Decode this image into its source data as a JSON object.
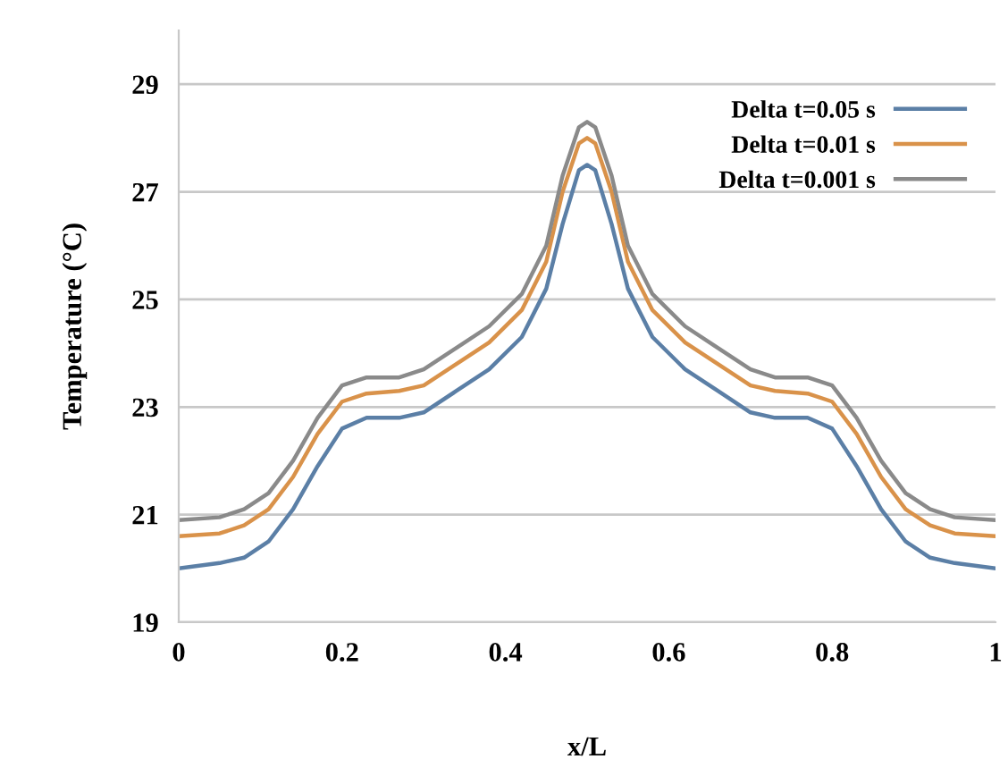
{
  "chart_data": {
    "type": "line",
    "xlabel": "x/L",
    "ylabel": "Temperature (°C)",
    "x": [
      0,
      0.05,
      0.08,
      0.11,
      0.14,
      0.17,
      0.2,
      0.23,
      0.27,
      0.3,
      0.34,
      0.38,
      0.42,
      0.45,
      0.47,
      0.49,
      0.5,
      0.51,
      0.53,
      0.55,
      0.58,
      0.62,
      0.66,
      0.7,
      0.73,
      0.77,
      0.8,
      0.83,
      0.86,
      0.89,
      0.92,
      0.95,
      1
    ],
    "series": [
      {
        "name": "Delta t=0.05 s",
        "color": "#5b7fa6",
        "values": [
          20.0,
          20.1,
          20.2,
          20.5,
          21.1,
          21.9,
          22.6,
          22.8,
          22.8,
          22.9,
          23.3,
          23.7,
          24.3,
          25.2,
          26.4,
          27.4,
          27.5,
          27.4,
          26.4,
          25.2,
          24.3,
          23.7,
          23.3,
          22.9,
          22.8,
          22.8,
          22.6,
          21.9,
          21.1,
          20.5,
          20.2,
          20.1,
          20.0
        ]
      },
      {
        "name": "Delta t=0.01 s",
        "color": "#d9924a",
        "values": [
          20.6,
          20.65,
          20.8,
          21.1,
          21.7,
          22.5,
          23.1,
          23.25,
          23.3,
          23.4,
          23.8,
          24.2,
          24.8,
          25.7,
          27.0,
          27.9,
          28.0,
          27.9,
          27.0,
          25.7,
          24.8,
          24.2,
          23.8,
          23.4,
          23.3,
          23.25,
          23.1,
          22.5,
          21.7,
          21.1,
          20.8,
          20.65,
          20.6
        ]
      },
      {
        "name": "Delta t=0.001 s",
        "color": "#8a8a8a",
        "values": [
          20.9,
          20.95,
          21.1,
          21.4,
          22.0,
          22.8,
          23.4,
          23.55,
          23.55,
          23.7,
          24.1,
          24.5,
          25.1,
          26.0,
          27.3,
          28.2,
          28.3,
          28.2,
          27.3,
          26.0,
          25.1,
          24.5,
          24.1,
          23.7,
          23.55,
          23.55,
          23.4,
          22.8,
          22.0,
          21.4,
          21.1,
          20.95,
          20.9
        ]
      }
    ],
    "xlim": [
      0,
      1
    ],
    "xticks": [
      0,
      0.2,
      0.4,
      0.6,
      0.8,
      1
    ],
    "ylim": [
      19,
      30
    ],
    "yticks": [
      19,
      21,
      23,
      25,
      27,
      29
    ],
    "grid": "y",
    "legend": "top right",
    "line_style": "solid",
    "marker": "none"
  }
}
